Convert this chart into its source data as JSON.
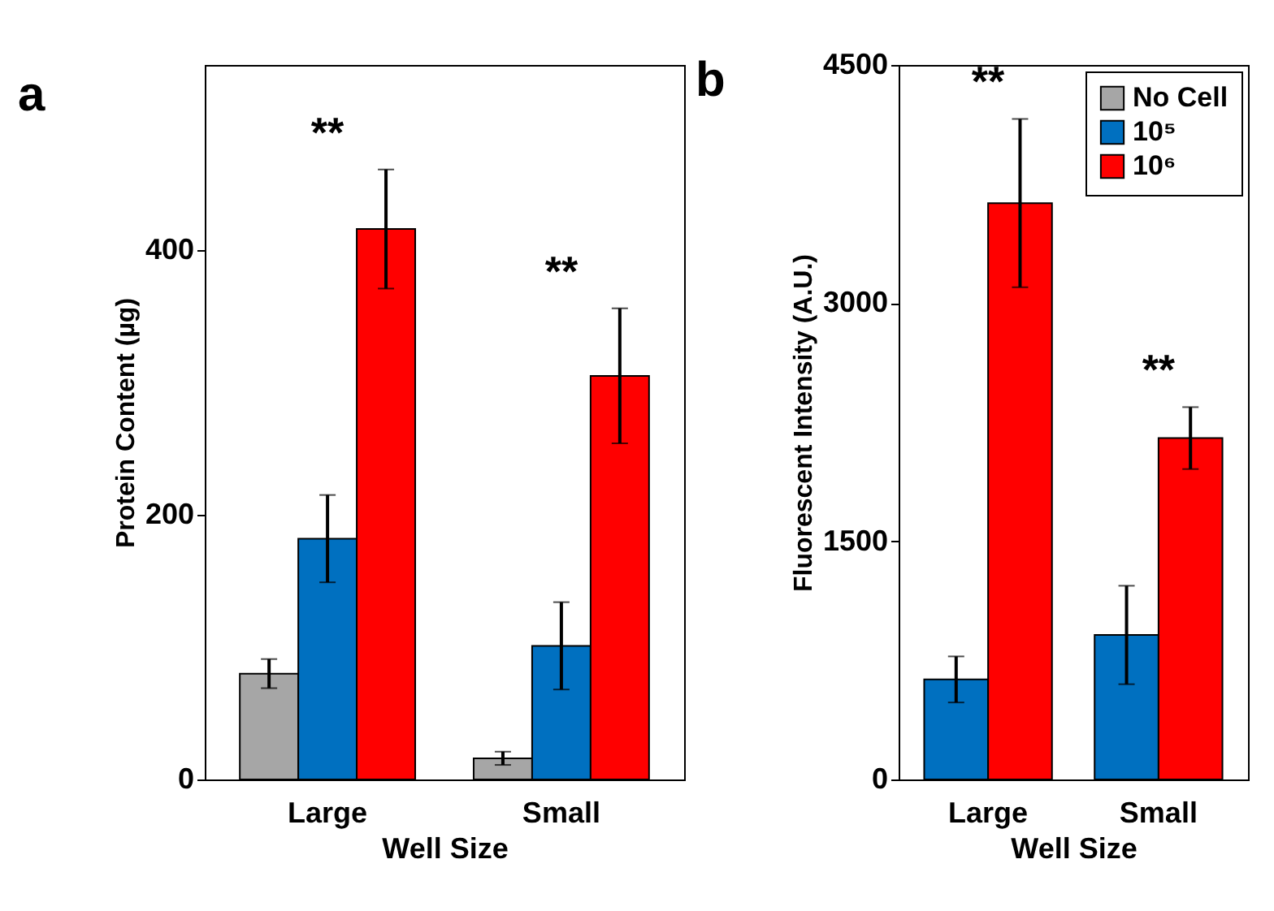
{
  "chart_data": [
    {
      "type": "bar",
      "title": "a",
      "xlabel": "Well Size",
      "ylabel": "Protein Content (µg)",
      "categories": [
        "Large",
        "Small"
      ],
      "ylim": [
        0,
        540
      ],
      "yticks": [
        0,
        200,
        400
      ],
      "grid": false,
      "legend": false,
      "series": [
        {
          "color": "#a6a6a6",
          "values": [
            80,
            16
          ],
          "errors": [
            11,
            5
          ]
        },
        {
          "color": "#0070c0",
          "values": [
            182,
            101
          ],
          "errors": [
            33,
            33
          ]
        },
        {
          "color": "#ff0000",
          "values": [
            416,
            305
          ],
          "errors": [
            45,
            51
          ]
        }
      ],
      "annotations": [
        "**",
        "**"
      ]
    },
    {
      "type": "bar",
      "title": "b",
      "xlabel": "Well Size",
      "ylabel": "Fluorescent Intensity (A.U.)",
      "categories": [
        "Large",
        "Small"
      ],
      "ylim": [
        0,
        4500
      ],
      "yticks": [
        0,
        1500,
        3000,
        4500
      ],
      "grid": false,
      "legend": "top right",
      "series": [
        {
          "name": "No Cell",
          "color": "#a6a6a6",
          "values": [
            null,
            null
          ]
        },
        {
          "name": "10⁵",
          "color": "#0070c0",
          "values": [
            630,
            910
          ],
          "errors": [
            145,
            310
          ]
        },
        {
          "name": "10⁶",
          "color": "#ff0000",
          "values": [
            3630,
            2150
          ],
          "errors": [
            530,
            195
          ]
        }
      ],
      "annotations": [
        "**",
        "**"
      ]
    }
  ]
}
